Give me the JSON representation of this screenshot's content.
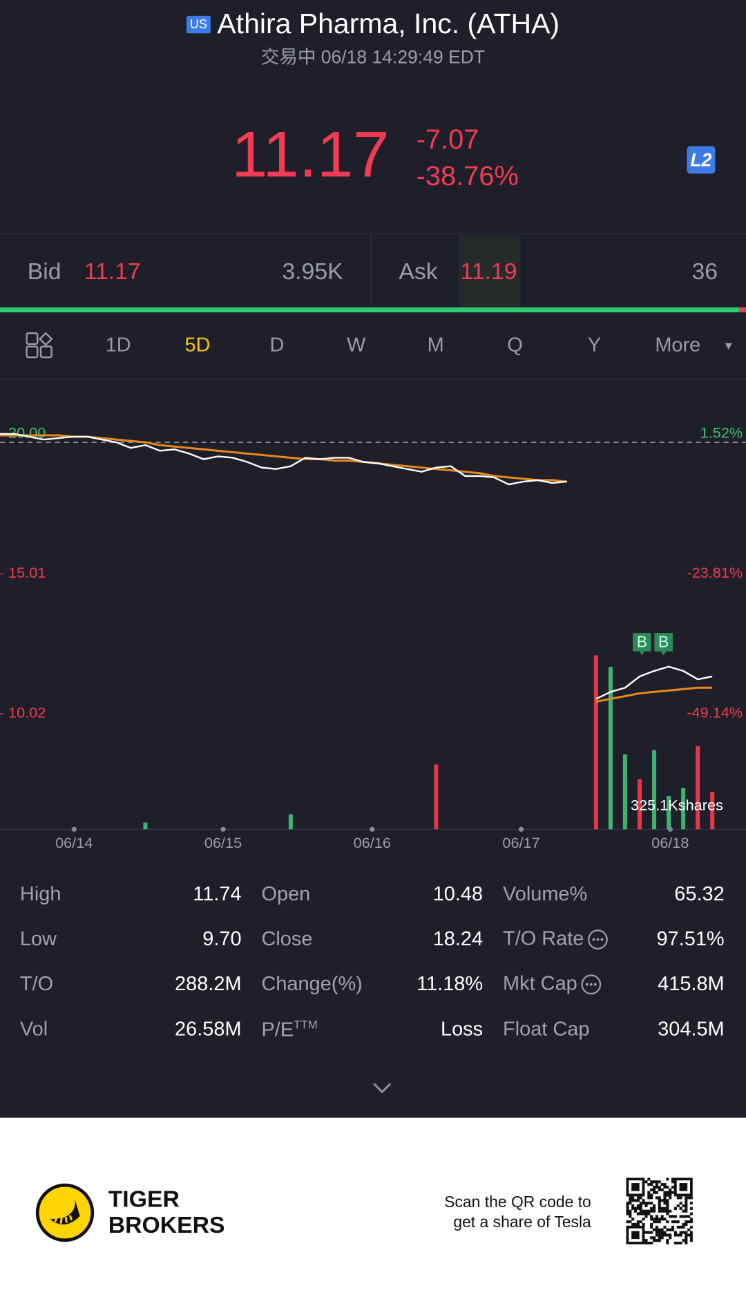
{
  "header": {
    "market_badge": "US",
    "title": "Athira Pharma, Inc. (ATHA)",
    "status": "交易中 06/18 14:29:49 EDT"
  },
  "quote": {
    "price": "11.17",
    "change": "-7.07",
    "change_pct": "-38.76%",
    "level_badge": "L2"
  },
  "order_book": {
    "bid_label": "Bid",
    "bid_price": "11.17",
    "bid_size": "3.95K",
    "ask_label": "Ask",
    "ask_price": "11.19",
    "ask_size": "36"
  },
  "tabs": [
    "1D",
    "5D",
    "D",
    "W",
    "M",
    "Q",
    "Y",
    "More"
  ],
  "active_tab": 1,
  "chart": {
    "type": "line",
    "ylim": [
      5.9,
      21.6
    ],
    "yticks": [
      {
        "value": 20,
        "label": "20.00"
      },
      {
        "value": 15.01,
        "label": "15.01"
      },
      {
        "value": 10.02,
        "label": "10.02"
      }
    ],
    "percent_labels": [
      "1.52%",
      "-23.81%",
      "-49.14%"
    ],
    "reference_line": 19.7,
    "x_labels": [
      "06/14",
      "06/15",
      "06/16",
      "06/17",
      "06/18"
    ],
    "price": {
      "color": "#ffffff",
      "values": [
        20.0,
        20.0,
        19.9,
        19.8,
        19.85,
        19.9,
        19.9,
        19.8,
        19.7,
        19.5,
        19.6,
        19.4,
        19.45,
        19.3,
        19.1,
        19.2,
        19.15,
        19.0,
        18.8,
        18.75,
        18.85,
        19.15,
        19.1,
        19.15,
        19.15,
        19.0,
        18.95,
        18.85,
        18.75,
        18.65,
        18.8,
        18.85,
        18.5,
        18.5,
        18.45,
        18.2,
        18.3,
        18.35,
        18.25,
        18.3,
        null,
        10.55,
        10.8,
        10.95,
        11.35,
        11.55,
        11.7,
        11.55,
        11.25,
        11.35
      ]
    },
    "average": {
      "color": "#e8891c",
      "values": [
        19.95,
        19.95,
        19.95,
        19.95,
        19.95,
        19.9,
        19.9,
        19.85,
        19.8,
        19.75,
        19.7,
        19.6,
        19.55,
        19.5,
        19.45,
        19.4,
        19.35,
        19.3,
        19.25,
        19.2,
        19.15,
        19.1,
        19.1,
        19.05,
        19.05,
        19.0,
        18.95,
        18.9,
        18.85,
        18.8,
        18.75,
        18.7,
        18.65,
        18.6,
        18.5,
        18.45,
        18.4,
        18.35,
        18.35,
        18.3,
        null,
        10.45,
        10.55,
        10.65,
        10.75,
        10.8,
        10.85,
        10.9,
        10.95,
        10.95
      ]
    },
    "volume": {
      "vlim": [
        0,
        600
      ],
      "values": [
        null,
        null,
        null,
        null,
        null,
        null,
        null,
        null,
        null,
        null,
        21,
        null,
        null,
        null,
        null,
        null,
        null,
        null,
        null,
        null,
        47,
        null,
        null,
        null,
        null,
        null,
        null,
        null,
        null,
        null,
        203,
        null,
        null,
        null,
        null,
        null,
        null,
        null,
        null,
        null,
        null,
        545,
        509,
        235,
        157,
        248,
        104,
        130,
        261,
        117
      ],
      "colors": [
        null,
        null,
        null,
        null,
        null,
        null,
        null,
        null,
        null,
        null,
        "#3cb371",
        null,
        null,
        null,
        null,
        null,
        null,
        null,
        null,
        null,
        "#3cb371",
        null,
        null,
        null,
        null,
        null,
        null,
        null,
        null,
        null,
        "#e8354a",
        null,
        null,
        null,
        null,
        null,
        null,
        null,
        null,
        null,
        null,
        "#e8354a",
        "#3cb371",
        "#3cb371",
        "#e8354a",
        "#3cb371",
        "#3cb371",
        "#3cb371",
        "#e8354a",
        "#e8354a"
      ]
    },
    "volume_label": "325.1Kshares",
    "markers": [
      "B",
      "B"
    ]
  },
  "stats": [
    [
      {
        "label": "High",
        "value": "11.74"
      },
      {
        "label": "Open",
        "value": "10.48"
      },
      {
        "label": "Volume%",
        "value": "65.32"
      }
    ],
    [
      {
        "label": "Low",
        "value": "9.70"
      },
      {
        "label": "Close",
        "value": "18.24"
      },
      {
        "label": "T/O Rate",
        "value": "97.51%",
        "info": true
      }
    ],
    [
      {
        "label": "T/O",
        "value": "288.2M"
      },
      {
        "label": "Change(%)",
        "value": "11.18%"
      },
      {
        "label": "Mkt Cap",
        "value": "415.8M",
        "info": true
      }
    ],
    [
      {
        "label": "Vol",
        "value": "26.58M"
      },
      {
        "label": "P/E",
        "label_sup": "TTM",
        "value": "Loss"
      },
      {
        "label": "Float Cap",
        "value": "304.5M"
      }
    ]
  ],
  "footer": {
    "brand": [
      "TIGER",
      "BROKERS"
    ],
    "promo": [
      "Scan the QR code to",
      "get a share of Tesla"
    ]
  }
}
